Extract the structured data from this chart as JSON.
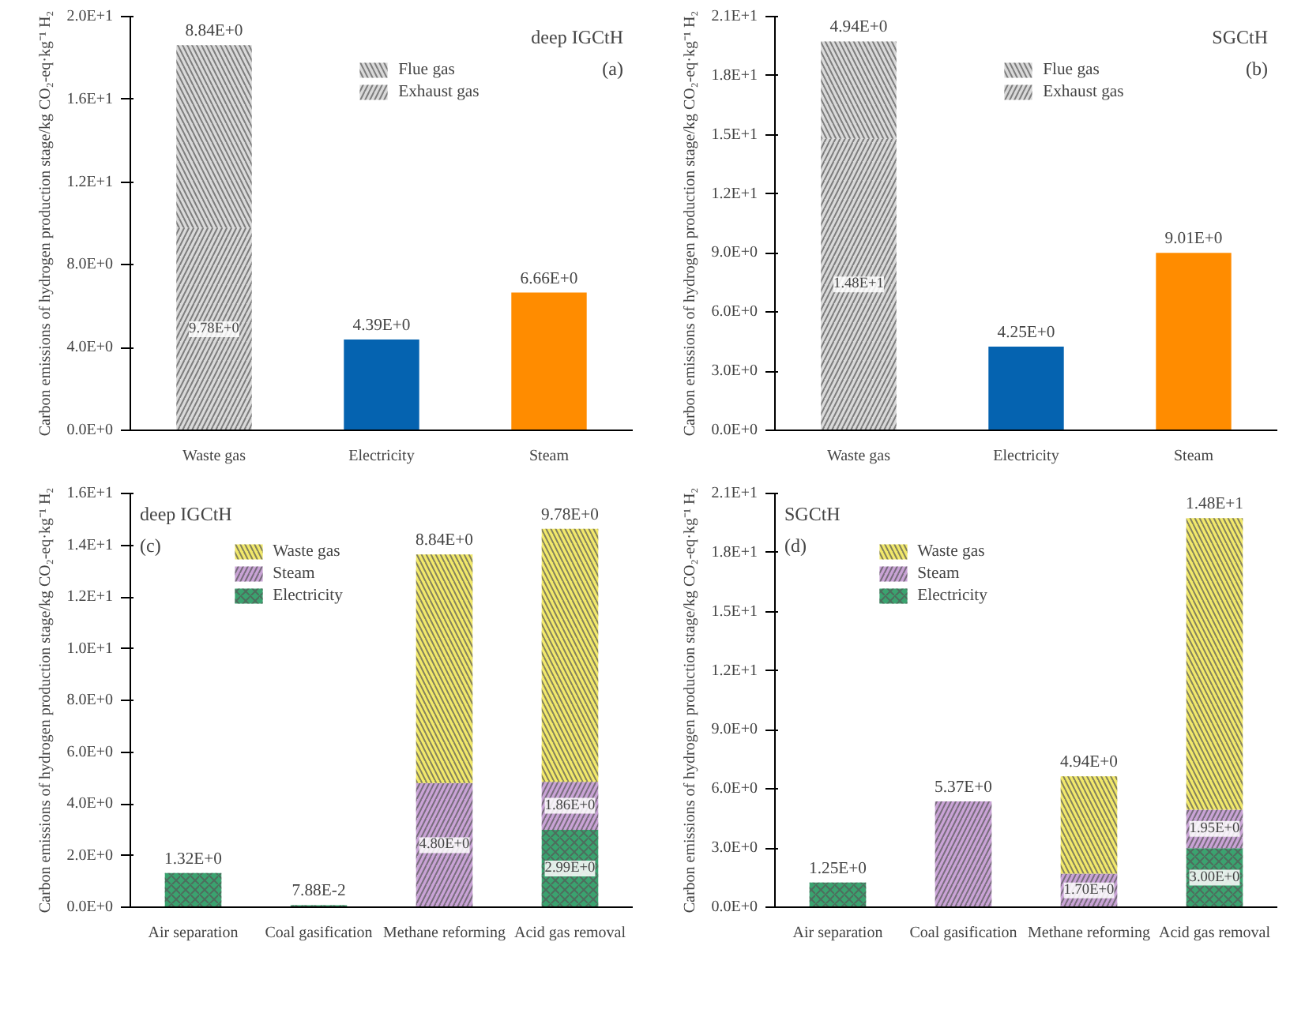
{
  "chart_data": [
    {
      "type": "bar",
      "stacked": true,
      "legend": "top right",
      "annotations": [
        "deep IGCtH",
        "(a)"
      ],
      "categories": [
        "Waste gas",
        "Electricity",
        "Steam"
      ],
      "ylabel": "Carbon emissions of hydrogen production stage/kg CO₂-eq·kg⁻¹ H₂",
      "ylim": [
        0,
        20
      ],
      "yticks": [
        {
          "value": 0,
          "label": "0.0E+0"
        },
        {
          "value": 4,
          "label": "4.0E+0"
        },
        {
          "value": 8,
          "label": "8.0E+0"
        },
        {
          "value": 12,
          "label": "1.2E+1"
        },
        {
          "value": 16,
          "label": "1.6E+1"
        },
        {
          "value": 20,
          "label": "2.0E+1"
        }
      ],
      "series": [
        {
          "name": "Exhaust gas",
          "color": "#d9d9d9",
          "values": [
            9.78,
            null,
            null
          ],
          "value_labels": [
            "9.78E+0",
            null,
            null
          ]
        },
        {
          "name": "Flue gas",
          "color": "#d9d9d9",
          "values": [
            8.84,
            null,
            null
          ],
          "value_labels": [
            "8.84E+0",
            null,
            null
          ]
        },
        {
          "color": "#0563b0",
          "values": [
            null,
            4.39,
            null
          ],
          "value_labels": [
            null,
            "4.39E+0",
            null
          ]
        },
        {
          "color": "#ff8c00",
          "values": [
            null,
            null,
            6.66
          ],
          "value_labels": [
            null,
            null,
            "6.66E+0"
          ]
        }
      ]
    },
    {
      "type": "bar",
      "stacked": true,
      "legend": "top right",
      "annotations": [
        "SGCtH",
        "(b)"
      ],
      "categories": [
        "Waste gas",
        "Electricity",
        "Steam"
      ],
      "ylabel": "Carbon emissions of hydrogen production stage/kg CO₂-eq·kg⁻¹ H₂",
      "ylim": [
        0,
        21
      ],
      "yticks": [
        {
          "value": 0,
          "label": "0.0E+0"
        },
        {
          "value": 3,
          "label": "3.0E+0"
        },
        {
          "value": 6,
          "label": "6.0E+0"
        },
        {
          "value": 9,
          "label": "9.0E+0"
        },
        {
          "value": 12,
          "label": "1.2E+1"
        },
        {
          "value": 15,
          "label": "1.5E+1"
        },
        {
          "value": 18,
          "label": "1.8E+1"
        },
        {
          "value": 21,
          "label": "2.1E+1"
        }
      ],
      "series": [
        {
          "name": "Exhaust gas",
          "color": "#d9d9d9",
          "values": [
            14.8,
            null,
            null
          ],
          "value_labels": [
            "1.48E+1",
            null,
            null
          ]
        },
        {
          "name": "Flue gas",
          "color": "#d9d9d9",
          "values": [
            4.94,
            null,
            null
          ],
          "value_labels": [
            "4.94E+0",
            null,
            null
          ]
        },
        {
          "color": "#0563b0",
          "values": [
            null,
            4.25,
            null
          ],
          "value_labels": [
            null,
            "4.25E+0",
            null
          ]
        },
        {
          "color": "#ff8c00",
          "values": [
            null,
            null,
            9.01
          ],
          "value_labels": [
            null,
            null,
            "9.01E+0"
          ]
        }
      ]
    },
    {
      "type": "bar",
      "stacked": true,
      "legend": "top left",
      "annotations": [
        "deep IGCtH",
        "(c)"
      ],
      "categories": [
        "Air separation",
        "Coal gasification",
        "Methane reforming",
        "Acid gas removal"
      ],
      "ylabel": "Carbon emissions of hydrogen production stage/kg CO₂-eq·kg⁻¹ H₂",
      "ylim": [
        0,
        16
      ],
      "yticks": [
        {
          "value": 0,
          "label": "0.0E+0"
        },
        {
          "value": 2,
          "label": "2.0E+0"
        },
        {
          "value": 4,
          "label": "4.0E+0"
        },
        {
          "value": 6,
          "label": "6.0E+0"
        },
        {
          "value": 8,
          "label": "8.0E+0"
        },
        {
          "value": 10,
          "label": "1.0E+1"
        },
        {
          "value": 12,
          "label": "1.2E+1"
        },
        {
          "value": 14,
          "label": "1.4E+1"
        },
        {
          "value": 16,
          "label": "1.6E+1"
        }
      ],
      "series": [
        {
          "name": "Electricity",
          "color": "#3aa36f",
          "values": [
            1.32,
            0.0788,
            null,
            2.99
          ],
          "value_labels": [
            "1.32E+0",
            "7.88E-2",
            null,
            "2.99E+0"
          ]
        },
        {
          "name": "Steam",
          "color": "#c9a3d6",
          "values": [
            null,
            null,
            4.8,
            1.86
          ],
          "value_labels": [
            null,
            null,
            "4.80E+0",
            "1.86E+0"
          ]
        },
        {
          "name": "Waste gas",
          "color": "#f2e96b",
          "values": [
            null,
            null,
            8.84,
            9.78
          ],
          "value_labels": [
            null,
            null,
            "8.84E+0",
            "9.78E+0"
          ]
        }
      ]
    },
    {
      "type": "bar",
      "stacked": true,
      "legend": "top left",
      "annotations": [
        "SGCtH",
        "(d)"
      ],
      "categories": [
        "Air separation",
        "Coal gasification",
        "Methane reforming",
        "Acid gas removal"
      ],
      "ylabel": "Carbon emissions of hydrogen production stage/kg CO₂-eq·kg⁻¹ H₂",
      "ylim": [
        0,
        21
      ],
      "yticks": [
        {
          "value": 0,
          "label": "0.0E+0"
        },
        {
          "value": 3,
          "label": "3.0E+0"
        },
        {
          "value": 6,
          "label": "6.0E+0"
        },
        {
          "value": 9,
          "label": "9.0E+0"
        },
        {
          "value": 12,
          "label": "1.2E+1"
        },
        {
          "value": 15,
          "label": "1.5E+1"
        },
        {
          "value": 18,
          "label": "1.8E+1"
        },
        {
          "value": 21,
          "label": "2.1E+1"
        }
      ],
      "series": [
        {
          "name": "Electricity",
          "color": "#3aa36f",
          "values": [
            1.25,
            null,
            null,
            3.0
          ],
          "value_labels": [
            "1.25E+0",
            null,
            null,
            "3.00E+0"
          ]
        },
        {
          "name": "Steam",
          "color": "#c9a3d6",
          "values": [
            null,
            5.37,
            1.7,
            1.95
          ],
          "value_labels": [
            null,
            "5.37E+0",
            "1.70E+0",
            "1.95E+0"
          ]
        },
        {
          "name": "Waste gas",
          "color": "#f2e96b",
          "values": [
            null,
            null,
            4.94,
            14.8
          ],
          "value_labels": [
            null,
            null,
            "4.94E+0",
            "1.48E+1"
          ]
        }
      ]
    }
  ]
}
